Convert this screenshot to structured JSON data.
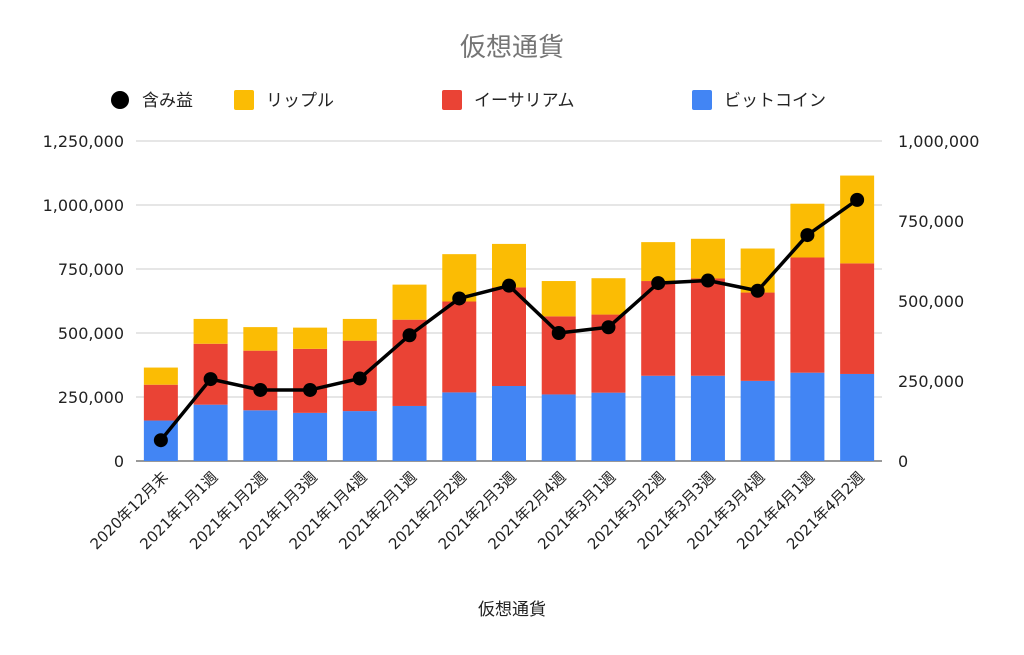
{
  "chart_data": {
    "type": "bar",
    "stacked": true,
    "title": "仮想通貨",
    "xlabel": "仮想通貨",
    "categories": [
      "2020年12月末",
      "2021年1月1週",
      "2021年1月2週",
      "2021年1月3週",
      "2021年1月4週",
      "2021年2月1週",
      "2021年2月2週",
      "2021年2月3週",
      "2021年2月4週",
      "2021年3月1週",
      "2021年3月2週",
      "2021年3月3週",
      "2021年3月4週",
      "2021年4月1週",
      "2021年4月2週"
    ],
    "series": [
      {
        "name": "ビットコイン",
        "color": "#4285f4",
        "axis": "left",
        "values": [
          158000,
          220000,
          198000,
          188000,
          195000,
          215000,
          268000,
          293000,
          260000,
          267000,
          333000,
          333000,
          313000,
          345000,
          340000
        ]
      },
      {
        "name": "イーサリアム",
        "color": "#ea4335",
        "axis": "left",
        "values": [
          140000,
          238000,
          233000,
          250000,
          275000,
          337000,
          355000,
          385000,
          305000,
          305000,
          370000,
          380000,
          345000,
          450000,
          432000
        ]
      },
      {
        "name": "リップル",
        "color": "#fbbc04",
        "axis": "left",
        "values": [
          67000,
          97000,
          92000,
          83000,
          85000,
          137000,
          185000,
          170000,
          138000,
          142000,
          152000,
          155000,
          172000,
          210000,
          343000
        ]
      },
      {
        "name": "含み益",
        "color": "#000000",
        "axis": "right",
        "type": "line",
        "values": [
          65000,
          256000,
          222000,
          222000,
          258000,
          393000,
          508000,
          548000,
          400000,
          418000,
          556000,
          564000,
          532000,
          706000,
          816000
        ]
      }
    ],
    "ylim_left": [
      0,
      1250000
    ],
    "yticks_left": [
      "0",
      "250,000",
      "500,000",
      "750,000",
      "1,000,000",
      "1,250,000"
    ],
    "ylim_right": [
      0,
      1000000
    ],
    "yticks_right": [
      "0",
      "250,000",
      "500,000",
      "750,000",
      "1,000,000"
    ],
    "legend_position": "top",
    "grid": true
  }
}
